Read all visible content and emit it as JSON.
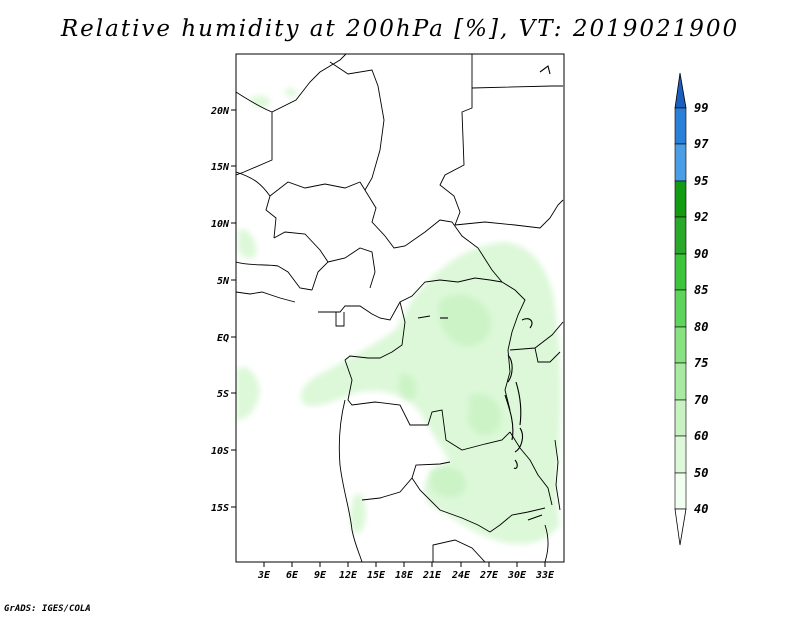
{
  "title": "Relative humidity at 200hPa [%], VT: 2019021900",
  "credit": "GrADS: IGES/COLA",
  "map": {
    "lat_labels": [
      "20N",
      "15N",
      "10N",
      "5N",
      "EQ",
      "5S",
      "10S",
      "15S"
    ],
    "lon_labels": [
      "3E",
      "6E",
      "9E",
      "12E",
      "15E",
      "18E",
      "21E",
      "24E",
      "27E",
      "30E",
      "33E"
    ],
    "extent": {
      "lon": [
        0,
        35
      ],
      "lat": [
        -20,
        24.5
      ]
    }
  },
  "colorbar": {
    "levels": [
      "40",
      "50",
      "60",
      "70",
      "75",
      "80",
      "85",
      "90",
      "92",
      "95",
      "97",
      "99"
    ],
    "colors": [
      "#ffffff",
      "#f0fff0",
      "#dcf8d8",
      "#c8f2c2",
      "#a8eaa2",
      "#88e282",
      "#5fd45c",
      "#3ec43c",
      "#2aa82a",
      "#139a13",
      "#4a9ee6",
      "#2a7fd8",
      "#1a5fc0"
    ]
  }
}
